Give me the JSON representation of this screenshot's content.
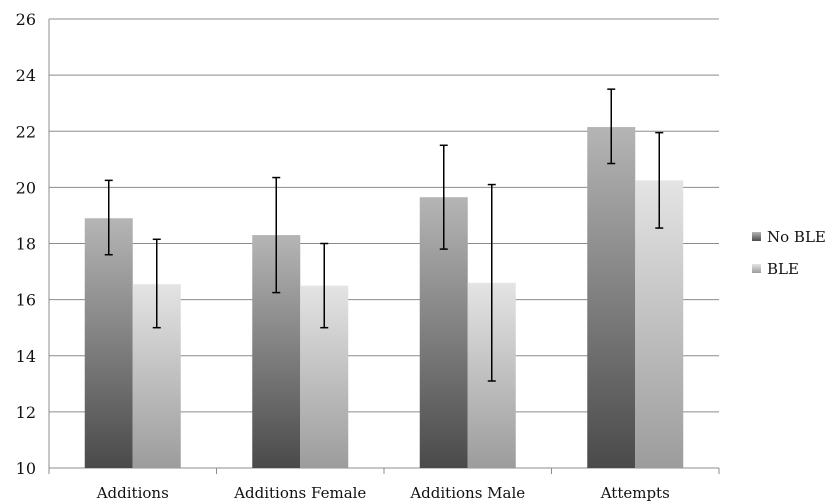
{
  "chart_data": {
    "type": "bar",
    "categories": [
      "Additions",
      "Additions Female",
      "Additions Male",
      "Attempts"
    ],
    "series": [
      {
        "name": "No BLE",
        "values": [
          18.9,
          18.3,
          19.65,
          22.15
        ],
        "error_low": [
          17.6,
          16.25,
          17.8,
          20.85
        ],
        "error_high": [
          20.25,
          20.35,
          21.5,
          23.5
        ],
        "color_top": "#b5b5b5",
        "color_bottom": "#4a4a4a"
      },
      {
        "name": "BLE",
        "values": [
          16.55,
          16.5,
          16.6,
          20.25
        ],
        "error_low": [
          15.0,
          15.0,
          13.1,
          18.55
        ],
        "error_high": [
          18.15,
          18.0,
          20.1,
          21.95
        ],
        "color_top": "#e4e4e4",
        "color_bottom": "#9c9c9c"
      }
    ],
    "xlabel": "",
    "ylabel": "",
    "ylim": [
      10,
      26
    ],
    "yticks": [
      10,
      12,
      14,
      16,
      18,
      20,
      22,
      24,
      26
    ],
    "grid": true,
    "legend_position": "right"
  }
}
